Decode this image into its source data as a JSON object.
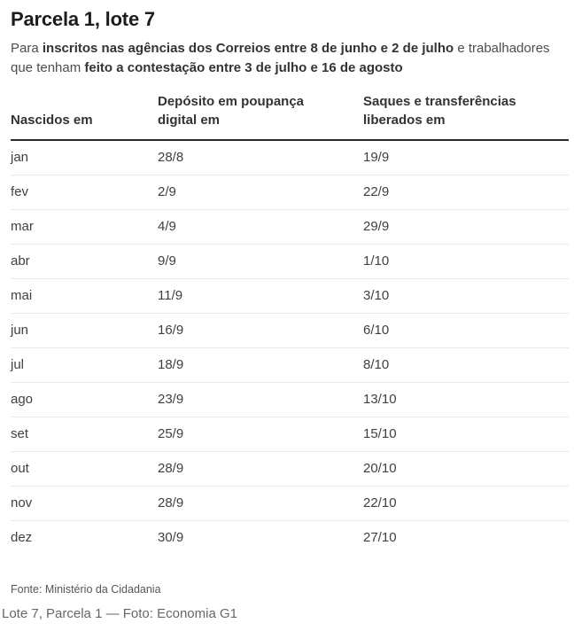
{
  "figure": {
    "title": "Parcela 1, lote 7",
    "subtitle": {
      "prefix": "Para ",
      "bold1": "inscritos nas agências dos Correios entre 8 de junho e 2 de julho",
      "middle": " e trabalhadores que tenham ",
      "bold2": "feito a contestação entre 3 de julho e 16 de agosto"
    }
  },
  "table": {
    "columns": [
      "Nascidos em",
      "Depósito em poupança digital em",
      "Saques e transferências liberados em"
    ],
    "rows": [
      [
        "jan",
        "28/8",
        "19/9"
      ],
      [
        "fev",
        "2/9",
        "22/9"
      ],
      [
        "mar",
        "4/9",
        "29/9"
      ],
      [
        "abr",
        "9/9",
        "1/10"
      ],
      [
        "mai",
        "11/9",
        "3/10"
      ],
      [
        "jun",
        "16/9",
        "6/10"
      ],
      [
        "jul",
        "18/9",
        "8/10"
      ],
      [
        "ago",
        "23/9",
        "13/10"
      ],
      [
        "set",
        "25/9",
        "15/10"
      ],
      [
        "out",
        "28/9",
        "20/10"
      ],
      [
        "nov",
        "28/9",
        "22/10"
      ],
      [
        "dez",
        "30/9",
        "27/10"
      ]
    ]
  },
  "source_note": "Fonte: Ministério da Cidadania",
  "photo_caption": "Lote 7, Parcela 1 — Foto: Economia G1"
}
